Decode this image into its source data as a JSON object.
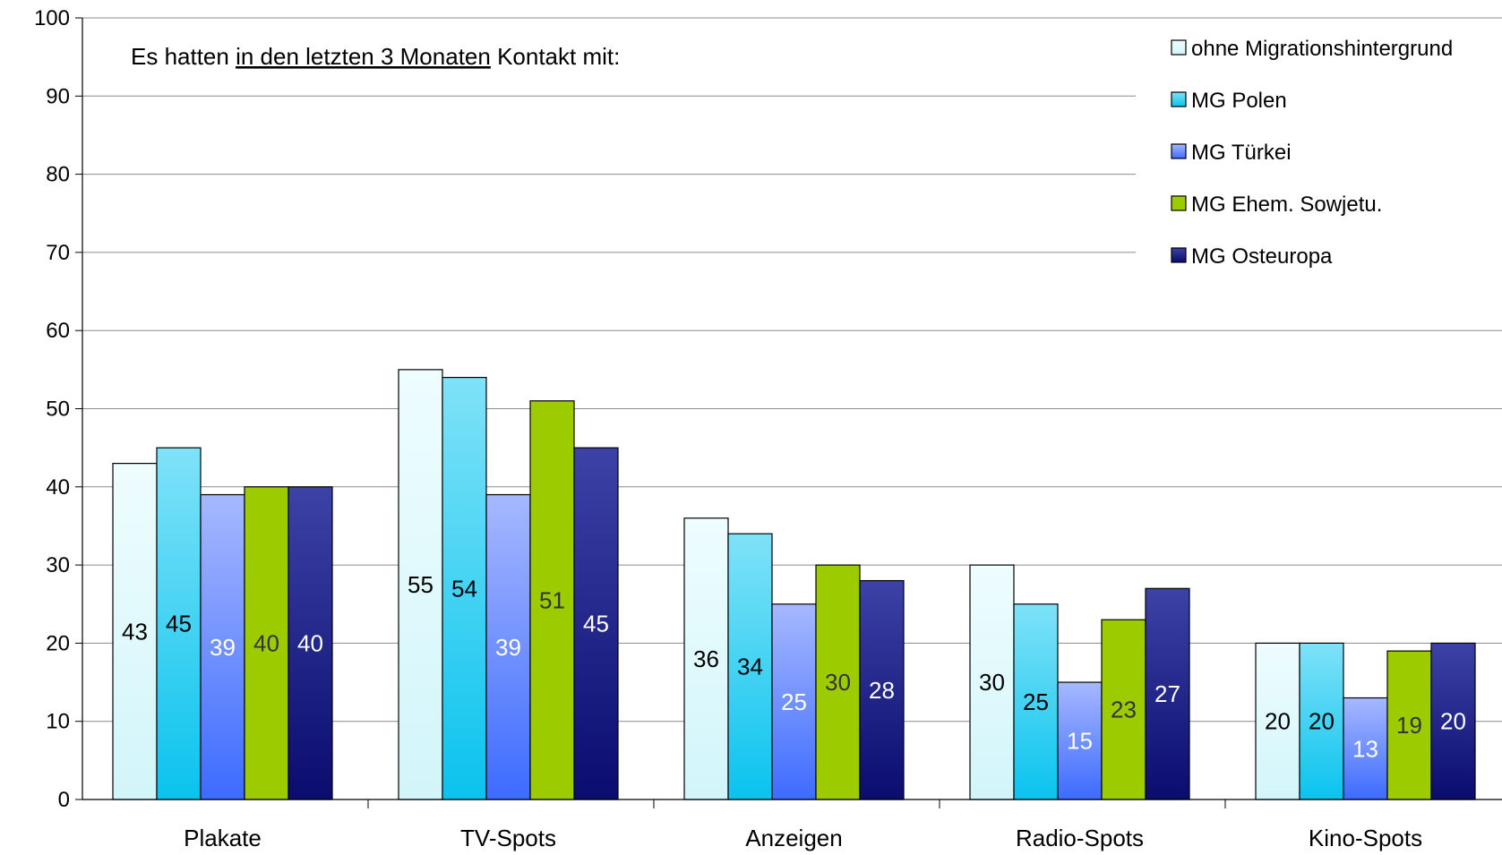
{
  "chart_data": {
    "type": "bar",
    "subtitle": {
      "before": "Es hatten ",
      "underlined": "in den letzten 3 Monaten",
      "after": " Kontakt mit:"
    },
    "categories": [
      "Plakate",
      "TV-Spots",
      "Anzeigen",
      "Radio-Spots",
      "Kino-Spots"
    ],
    "series": [
      {
        "name": "ohne Migrationshintergrund",
        "values": [
          43,
          55,
          36,
          30,
          20
        ],
        "color_top": "#eefdfe",
        "color_bottom": "#d2f5fa",
        "label_color": "#000000"
      },
      {
        "name": "MG Polen",
        "values": [
          45,
          54,
          34,
          25,
          20
        ],
        "color_top": "#7fe2f8",
        "color_bottom": "#0ac3ee",
        "label_color": "#000000"
      },
      {
        "name": "MG Türkei",
        "values": [
          39,
          39,
          25,
          15,
          13
        ],
        "color_top": "#a6b8ff",
        "color_bottom": "#3d6bff",
        "label_color": "#ffffff"
      },
      {
        "name": "MG Ehem. Sowjetu.",
        "values": [
          40,
          51,
          30,
          23,
          19
        ],
        "color_top": "#9ccc00",
        "color_bottom": "#9ccc00",
        "label_color": "#333333"
      },
      {
        "name": "MG Osteuropa",
        "values": [
          40,
          45,
          28,
          27,
          20
        ],
        "color_top": "#3c42a6",
        "color_bottom": "#0a0c6e",
        "label_color": "#ffffff"
      }
    ],
    "ylim": [
      0,
      100
    ],
    "yticks": [
      0,
      10,
      20,
      30,
      40,
      50,
      60,
      70,
      80,
      90,
      100
    ],
    "grid": true,
    "legend": "top-right"
  }
}
